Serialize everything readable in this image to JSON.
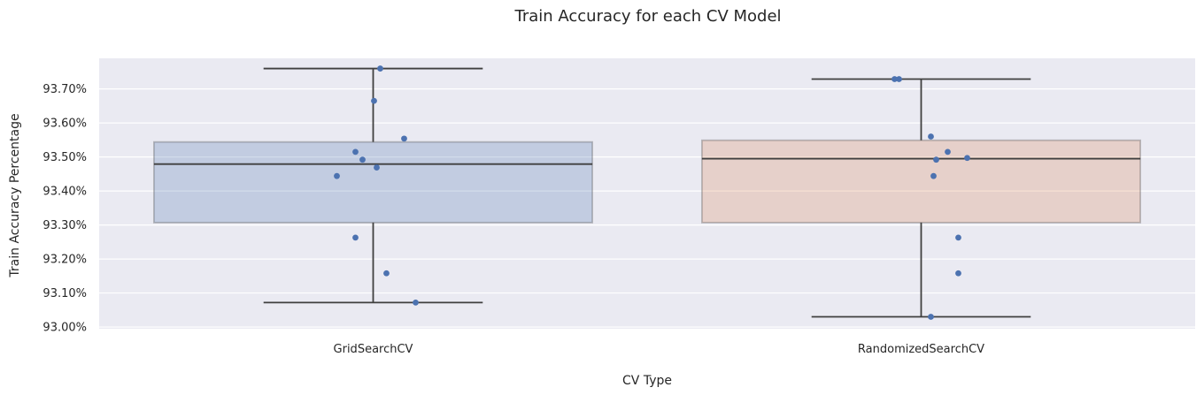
{
  "chart_data": {
    "type": "box",
    "title": "Train Accuracy for each CV Model",
    "xlabel": "CV Type",
    "ylabel": "Train Accuracy Percentage",
    "categories": [
      "GridSearchCV",
      "RandomizedSearchCV"
    ],
    "ylim": [
      92.995,
      93.79
    ],
    "y_ticks": [
      93.0,
      93.1,
      93.2,
      93.3,
      93.4,
      93.5,
      93.6,
      93.7
    ],
    "y_tick_labels": [
      "93.00%",
      "93.10%",
      "93.20%",
      "93.30%",
      "93.40%",
      "93.50%",
      "93.60%",
      "93.70%"
    ],
    "grid": true,
    "background": "#eaeaf2",
    "box_colors": [
      "#4c72b0",
      "#dd8452"
    ],
    "box_alpha": 0.25,
    "point_color": "#4c72b0",
    "boxes": [
      {
        "category": "GridSearchCV",
        "whisker_low": 93.072,
        "q1": 93.307,
        "median": 93.479,
        "q3": 93.544,
        "whisker_high": 93.76,
        "points": [
          93.76,
          93.665,
          93.554,
          93.515,
          93.492,
          93.469,
          93.444,
          93.263,
          93.158,
          93.072
        ]
      },
      {
        "category": "RandomizedSearchCV",
        "whisker_low": 93.03,
        "q1": 93.307,
        "median": 93.495,
        "q3": 93.549,
        "whisker_high": 93.729,
        "points": [
          93.729,
          93.729,
          93.56,
          93.515,
          93.497,
          93.492,
          93.444,
          93.263,
          93.158,
          93.03
        ]
      }
    ]
  }
}
